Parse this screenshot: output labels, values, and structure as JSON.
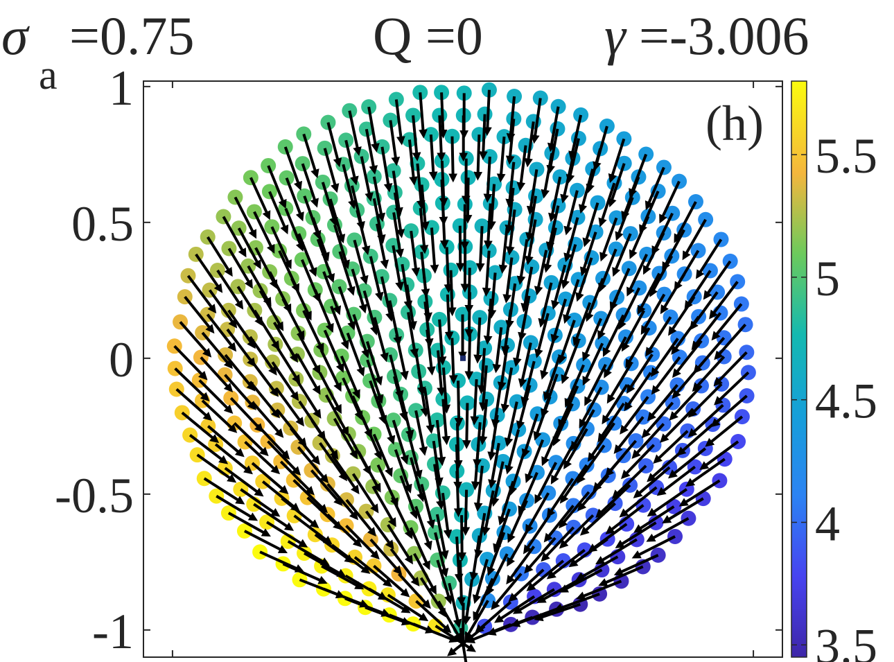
{
  "header": {
    "sigma_symbol": "σ",
    "sigma_sub": "a",
    "sigma_value": "=0.75",
    "q_label": "Q =0",
    "gamma_symbol": "γ",
    "gamma_value": "=-3.006"
  },
  "chart_data": {
    "type": "scatter",
    "subtype": "quiver",
    "panel_label": "(h)",
    "xlim": [
      -1.1,
      1.1
    ],
    "ylim": [
      -1.1,
      1.02
    ],
    "yticks": [
      1,
      0.5,
      0,
      -0.5,
      -1
    ],
    "ytick_labels": [
      "1",
      "0.5",
      "0",
      "-0.5",
      "-1"
    ],
    "disk_radius": 1.0,
    "grid": false,
    "colorbar": {
      "min": 3.45,
      "max": 5.8,
      "ticks": [
        5.5,
        5,
        4.5,
        4,
        3.5
      ],
      "tick_labels": [
        "5.5",
        "5",
        "4.5",
        "4",
        "3.5"
      ],
      "colormap": "parula"
    },
    "vector_field": "arrows converge toward the bottom of the disk (0, -1.05); color encodes the local angle value",
    "arrow_color": "#000000"
  }
}
